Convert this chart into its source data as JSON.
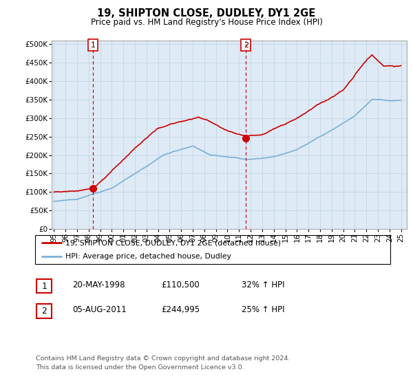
{
  "title": "19, SHIPTON CLOSE, DUDLEY, DY1 2GE",
  "subtitle": "Price paid vs. HM Land Registry's House Price Index (HPI)",
  "ylabel_ticks": [
    "£0",
    "£50K",
    "£100K",
    "£150K",
    "£200K",
    "£250K",
    "£300K",
    "£350K",
    "£400K",
    "£450K",
    "£500K"
  ],
  "ytick_values": [
    0,
    50000,
    100000,
    150000,
    200000,
    250000,
    300000,
    350000,
    400000,
    450000,
    500000
  ],
  "ylim": [
    0,
    510000
  ],
  "xlim_min": 1994.8,
  "xlim_max": 2025.5,
  "xtick_years": [
    1995,
    1996,
    1997,
    1998,
    1999,
    2000,
    2001,
    2002,
    2003,
    2004,
    2005,
    2006,
    2007,
    2008,
    2009,
    2010,
    2011,
    2012,
    2013,
    2014,
    2015,
    2016,
    2017,
    2018,
    2019,
    2020,
    2021,
    2022,
    2023,
    2024,
    2025
  ],
  "xtick_labels": [
    "95",
    "96",
    "97",
    "98",
    "99",
    "00",
    "01",
    "02",
    "03",
    "04",
    "05",
    "06",
    "07",
    "08",
    "09",
    "10",
    "11",
    "12",
    "13",
    "14",
    "15",
    "16",
    "17",
    "18",
    "19",
    "20",
    "21",
    "22",
    "23",
    "24",
    "25"
  ],
  "legend_property": "19, SHIPTON CLOSE, DUDLEY, DY1 2GE (detached house)",
  "legend_hpi": "HPI: Average price, detached house, Dudley",
  "sale1_label": "1",
  "sale1_date": "20-MAY-1998",
  "sale1_price": "£110,500",
  "sale1_hpi_text": "32% ↑ HPI",
  "sale1_year": 1998.38,
  "sale1_value": 110500,
  "sale2_label": "2",
  "sale2_date": "05-AUG-2011",
  "sale2_price": "£244,995",
  "sale2_hpi_text": "25% ↑ HPI",
  "sale2_year": 2011.59,
  "sale2_value": 244995,
  "footnote_line1": "Contains HM Land Registry data © Crown copyright and database right 2024.",
  "footnote_line2": "This data is licensed under the Open Government Licence v3.0.",
  "property_color": "#cc0000",
  "hpi_color": "#7bafd4",
  "vline_color": "#cc0000",
  "grid_color": "#c8d8e8",
  "chart_bg_color": "#deeaf5",
  "border_color": "#aaaaaa"
}
